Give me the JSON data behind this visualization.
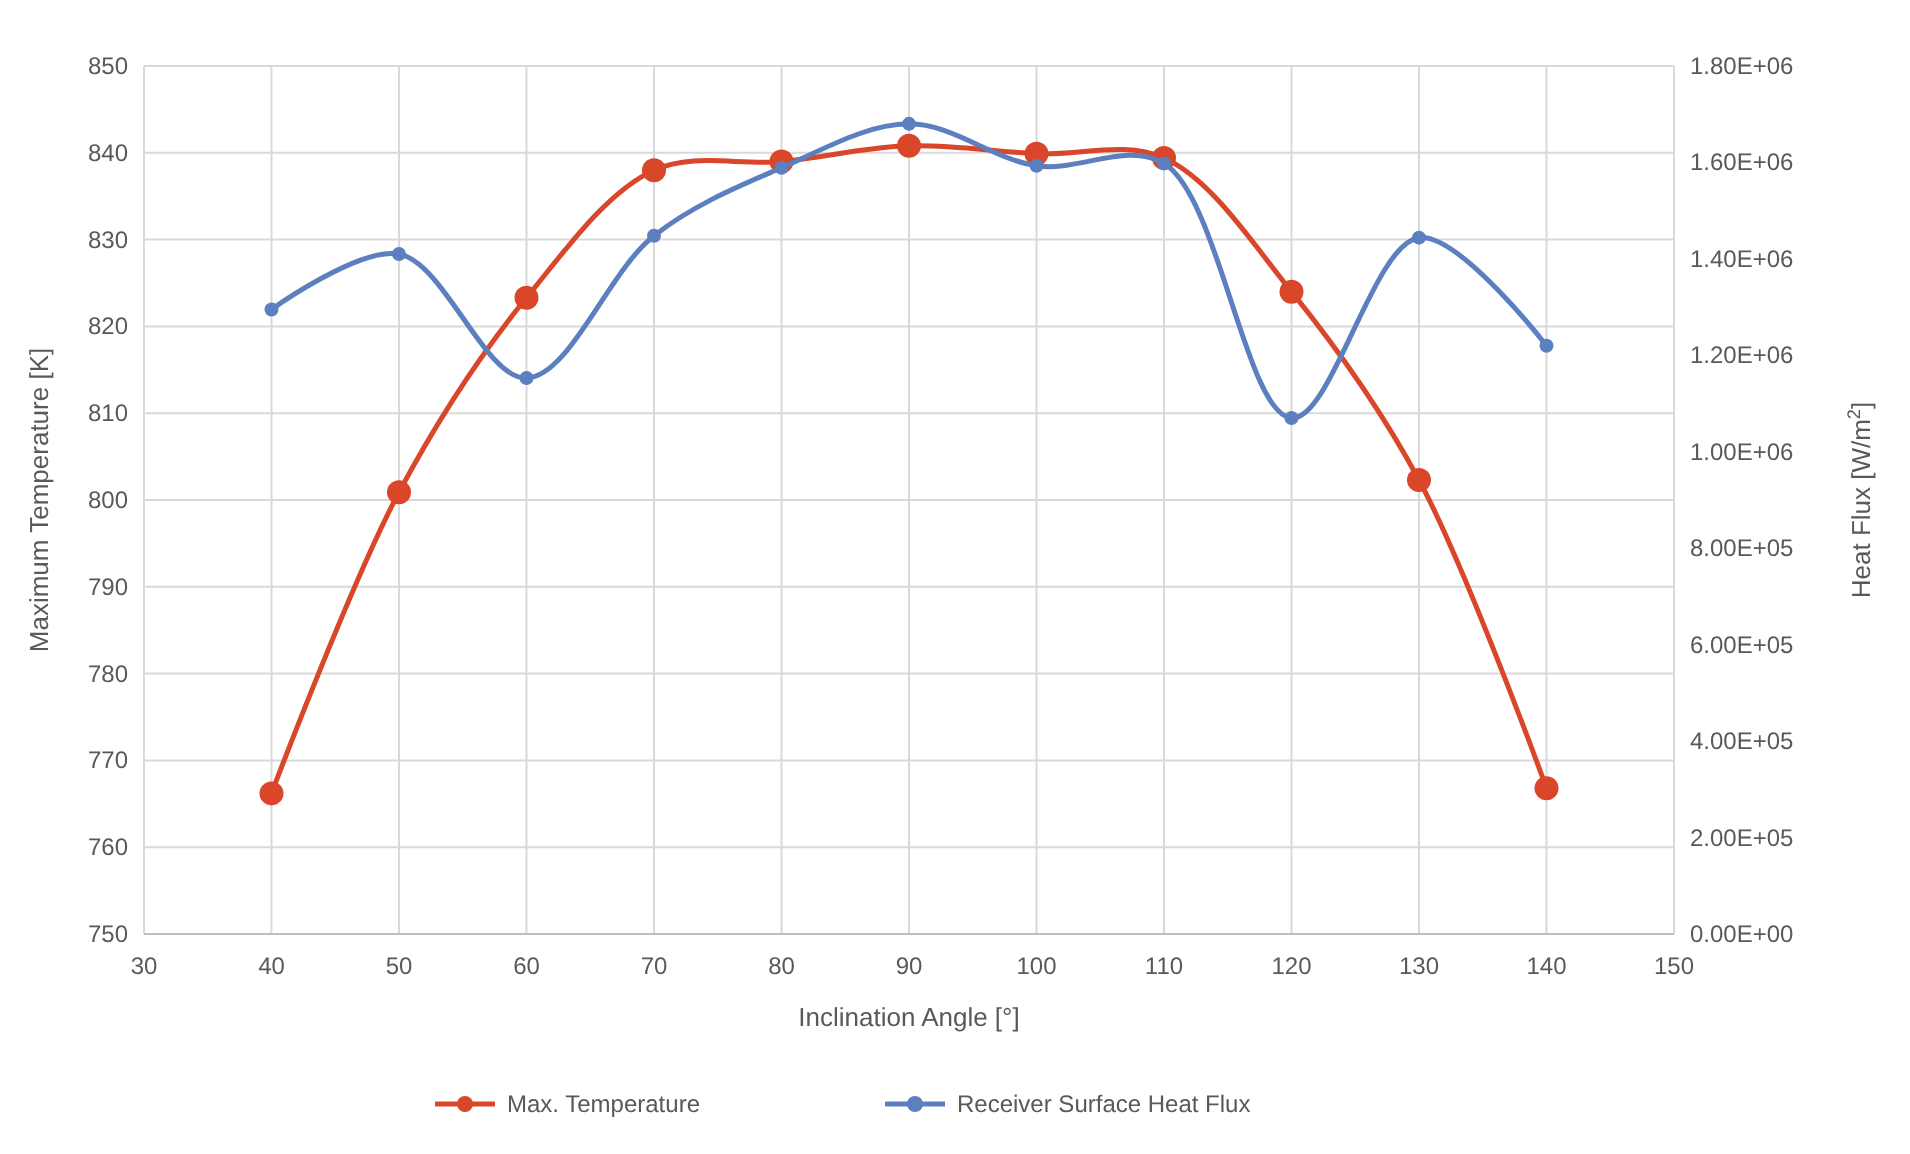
{
  "chart_data": {
    "type": "line",
    "xlabel": "Inclination Angle [°]",
    "ylabel": "Maximum Temperature [K]",
    "y2label": "Heat Flux [W/m$^{2}$]",
    "x": [
      40,
      50,
      60,
      70,
      80,
      90,
      100,
      110,
      120,
      130,
      140
    ],
    "series": [
      {
        "name": "Max. Temperature",
        "color": "#d9462a",
        "values": [
          766.2,
          800.9,
          823.3,
          838,
          839,
          840.8,
          839.9,
          839.4,
          824,
          802.3,
          766.8
        ]
      },
      {
        "name": "Receiver Surface Heat Flux",
        "color": "#5b7fbf",
        "axis": "y2",
        "values": [
          1295000,
          1410000,
          1153000,
          1448000,
          1589000,
          1680000,
          1593000,
          1598000,
          1070000,
          1444000,
          1220000
        ]
      }
    ],
    "xlim": [
      30,
      150
    ],
    "xticks": [
      30,
      40,
      50,
      60,
      70,
      80,
      90,
      100,
      110,
      120,
      130,
      140,
      150
    ],
    "ylim": [
      750,
      850
    ],
    "yticks": [
      750,
      760,
      770,
      780,
      790,
      800,
      810,
      820,
      830,
      840,
      850
    ],
    "y2lim": [
      0,
      1800000
    ],
    "y2ticks": [
      {
        "value": 0,
        "label": "0.00E+00"
      },
      {
        "value": 200000,
        "label": "2.00E+05"
      },
      {
        "value": 400000,
        "label": "4.00E+05"
      },
      {
        "value": 600000,
        "label": "6.00E+05"
      },
      {
        "value": 800000,
        "label": "8.00E+05"
      },
      {
        "value": 1000000,
        "label": "1.00E+06"
      },
      {
        "value": 1200000,
        "label": "1.20E+06"
      },
      {
        "value": 1400000,
        "label": "1.40E+06"
      },
      {
        "value": 1600000,
        "label": "1.60E+06"
      },
      {
        "value": 1800000,
        "label": "1.80E+06"
      }
    ],
    "grid": true,
    "legend": "bottom",
    "marker": "circle",
    "line_style": "solid"
  }
}
